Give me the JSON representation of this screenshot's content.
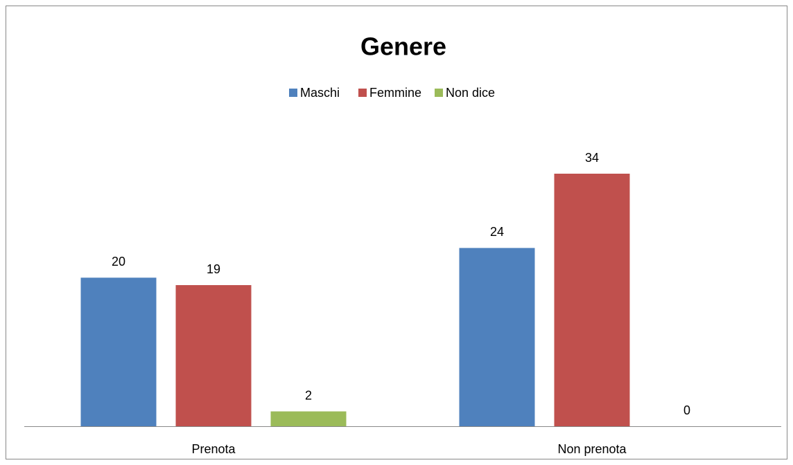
{
  "chart_data": {
    "type": "bar",
    "title": "Genere",
    "categories": [
      "Prenota",
      "Non prenota"
    ],
    "series": [
      {
        "name": "Maschi",
        "color": "#4f81bd",
        "values": [
          20,
          24
        ]
      },
      {
        "name": "Femmine",
        "color": "#c0504d",
        "values": [
          19,
          34
        ]
      },
      {
        "name": "Non dice",
        "color": "#9bbb59",
        "values": [
          2,
          0
        ]
      }
    ],
    "legend": "top"
  }
}
